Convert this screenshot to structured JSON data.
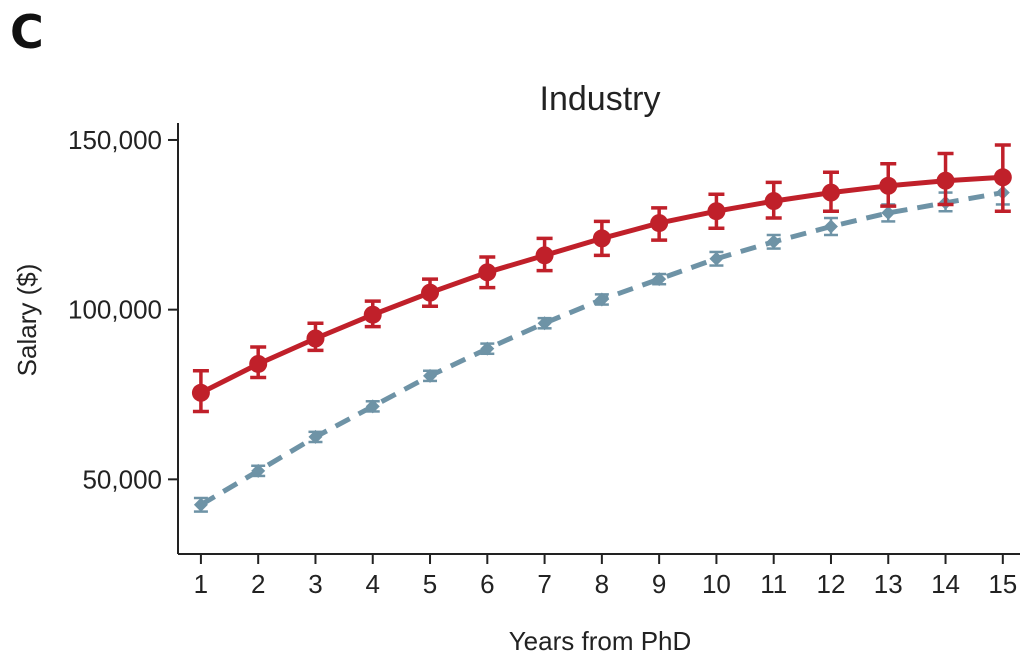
{
  "panel_label": "C",
  "chart_data": {
    "type": "line",
    "title": "Industry",
    "xlabel": "Years from PhD",
    "ylabel": "Salary ($)",
    "x": [
      1,
      2,
      3,
      4,
      5,
      6,
      7,
      8,
      9,
      10,
      11,
      12,
      13,
      14,
      15
    ],
    "x_tick_labels": [
      "1",
      "2",
      "3",
      "4",
      "5",
      "6",
      "7",
      "8",
      "9",
      "10",
      "11",
      "12",
      "13",
      "14",
      "15"
    ],
    "y_ticks": [
      50000,
      100000,
      150000
    ],
    "y_tick_labels": [
      "50,000",
      "100,000",
      "150,000"
    ],
    "xlim": [
      0.6,
      15.3
    ],
    "ylim": [
      28000,
      155000
    ],
    "grid": false,
    "series": [
      {
        "color": "#c0202a",
        "line_style": "solid",
        "marker": "circle",
        "values": [
          75500,
          84000,
          91500,
          98500,
          105000,
          111000,
          116000,
          121000,
          125500,
          129000,
          132000,
          134500,
          136500,
          138000,
          139000
        ],
        "error_low": [
          70000,
          80000,
          88000,
          95000,
          101000,
          106500,
          111500,
          116000,
          120500,
          124000,
          127000,
          129000,
          130500,
          131000,
          129000
        ],
        "error_high": [
          82000,
          89000,
          96000,
          102500,
          109000,
          115500,
          121000,
          126000,
          130000,
          134000,
          137500,
          140500,
          143000,
          146000,
          148500
        ]
      },
      {
        "color": "#6e93a6",
        "line_style": "dashed",
        "marker": "diamond",
        "values": [
          42500,
          52500,
          62500,
          71500,
          80500,
          88500,
          96000,
          103000,
          109000,
          115000,
          120000,
          124500,
          128500,
          131500,
          134500
        ],
        "error_low": [
          40500,
          51000,
          61000,
          70000,
          79000,
          87000,
          94500,
          101500,
          107500,
          113000,
          118000,
          122000,
          126000,
          129000,
          131000
        ],
        "error_high": [
          44500,
          54000,
          64000,
          73000,
          82000,
          90000,
          97500,
          104500,
          110500,
          117000,
          122000,
          127000,
          131000,
          134500,
          138000
        ]
      }
    ]
  }
}
